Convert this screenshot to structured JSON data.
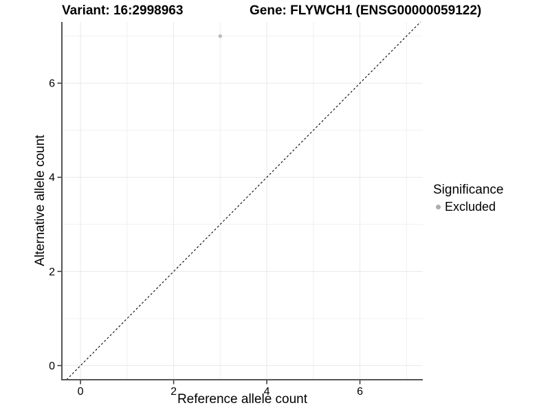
{
  "titles": {
    "variant": "Variant: 16:2998963",
    "gene": "Gene: FLYWCH1 (ENSG00000059122)"
  },
  "chart_data": {
    "type": "scatter",
    "xlabel": "Reference allele count",
    "ylabel": "Alternative allele count",
    "xlim": [
      -0.4,
      7.35
    ],
    "ylim": [
      -0.3,
      7.3
    ],
    "xticks": [
      0,
      2,
      4,
      6
    ],
    "yticks": [
      0,
      2,
      4,
      6
    ],
    "grid_major": [
      0,
      2,
      4,
      6
    ],
    "grid_minor": [
      1,
      3,
      5,
      7
    ],
    "grid_on": true,
    "points": [
      {
        "x": 3,
        "y": 7,
        "series": "Excluded"
      }
    ],
    "identity_line": {
      "style": "dashed",
      "equation": "y = x"
    },
    "legend": {
      "title": "Significance",
      "position": "right",
      "items": [
        {
          "label": "Excluded",
          "color": "#b3b3b3"
        }
      ]
    },
    "colors": {
      "point": "#bcbcbc",
      "legend_dot": "#adadad",
      "grid_major": "#e8e8e8",
      "grid_minor": "#f0f0f0",
      "axis_line": "#555555",
      "tick_mark": "#333333",
      "tick_label": "#000000",
      "dashed_line": "#000000",
      "background": "#ffffff"
    }
  }
}
